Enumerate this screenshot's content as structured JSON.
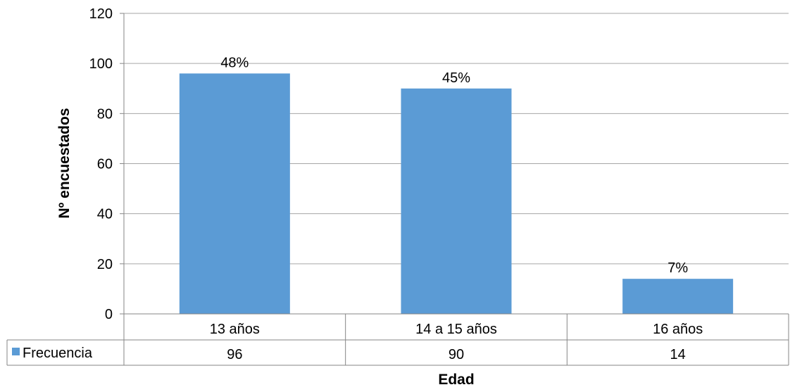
{
  "chart_data": {
    "type": "bar",
    "title": "",
    "xlabel": "Edad",
    "ylabel": "Nº encuestados",
    "ylim": [
      0,
      120
    ],
    "yticks": [
      0,
      20,
      40,
      60,
      80,
      100,
      120
    ],
    "grid": true,
    "categories": [
      "13 años",
      "14 a 15 años",
      "16 años"
    ],
    "series": [
      {
        "name": "Frecuencia",
        "values": [
          96,
          90,
          14
        ],
        "value_labels": [
          "96",
          "90",
          "14"
        ],
        "data_labels": [
          "48%",
          "45%",
          "7%"
        ]
      }
    ],
    "data_table": true,
    "legend": "data-table-row",
    "colors": {
      "bar": "#5B9BD5",
      "grid": "#A6A6A6",
      "axis": "#868686"
    }
  }
}
